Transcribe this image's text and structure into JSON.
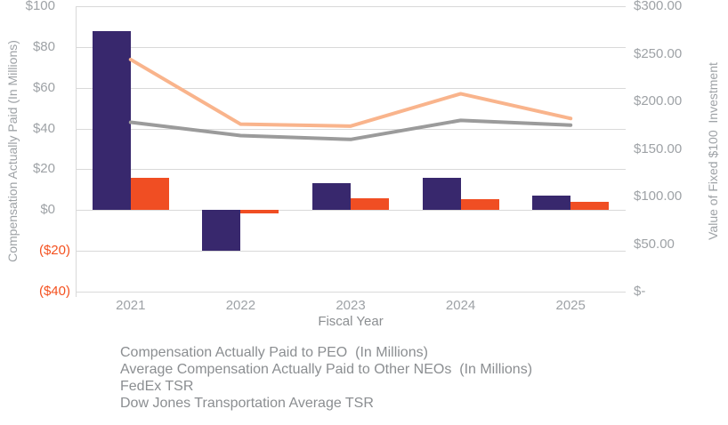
{
  "chart_data": {
    "type": "combo-bar-line",
    "categories": [
      "2021",
      "2022",
      "2023",
      "2024",
      "2025"
    ],
    "xlabel": "Fiscal Year",
    "grid": true,
    "legend_position": "bottom-left",
    "left_axis": {
      "label": "Compensation Actually Paid (In Millions)",
      "max": 100,
      "min": -40,
      "ticks": [
        {
          "value": 100,
          "label": "$100"
        },
        {
          "value": 80,
          "label": "$80"
        },
        {
          "value": 60,
          "label": "$60"
        },
        {
          "value": 40,
          "label": "$40"
        },
        {
          "value": 20,
          "label": "$20"
        },
        {
          "value": 0,
          "label": "$0"
        },
        {
          "value": -20,
          "label": "($20)"
        },
        {
          "value": -40,
          "label": "($40)"
        }
      ]
    },
    "right_axis": {
      "label": "Value of Fixed $100  Investment",
      "max": 300,
      "min": 0,
      "ticks": [
        {
          "value": 300,
          "label": "$300.00"
        },
        {
          "value": 250,
          "label": "$250.00"
        },
        {
          "value": 200,
          "label": "$200.00"
        },
        {
          "value": 150,
          "label": "$150.00"
        },
        {
          "value": 100,
          "label": "$100.00"
        },
        {
          "value": 50,
          "label": "$50.00"
        },
        {
          "value": 0,
          "label": "$-"
        }
      ]
    },
    "bar_series": [
      {
        "name": "Compensation Actually Paid to PEO  (In Millions)",
        "color": "#38286d",
        "axis": "left",
        "values": [
          88,
          -20,
          13,
          16,
          7
        ]
      },
      {
        "name": "Average Compensation Actually Paid to Other NEOs  (In Millions)",
        "color": "#f04e23",
        "axis": "left",
        "values": [
          16,
          -1.5,
          6,
          5.5,
          4
        ]
      }
    ],
    "line_series": [
      {
        "name": "FedEx TSR",
        "color": "#f9b48c",
        "axis": "right",
        "values": [
          244,
          176,
          174,
          208,
          182
        ]
      },
      {
        "name": "Dow Jones Transportation Average TSR",
        "color": "#9b9b9b",
        "axis": "right",
        "values": [
          178,
          164,
          160,
          180,
          175
        ]
      }
    ]
  },
  "colors": {
    "gridline": "#d9d9d9",
    "axis_line": "#d9d9d9",
    "tick_text": "#9ea2a6",
    "negative_tick_text": "#f4511f",
    "axis_title_text": "#9ea2a6",
    "xlabel_text": "#8b8e91",
    "legend_text": "#8b8e91"
  }
}
